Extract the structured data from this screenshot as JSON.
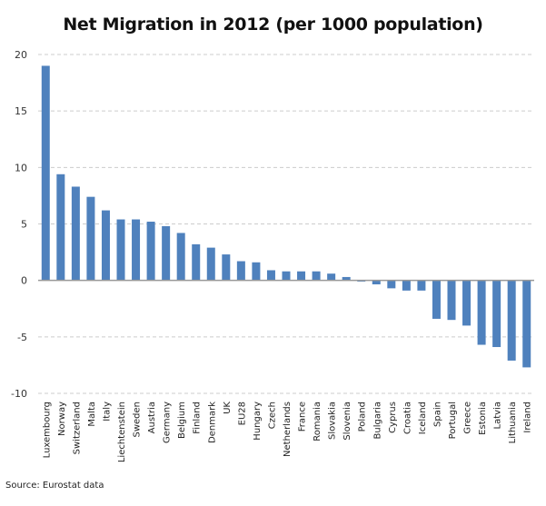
{
  "chart_data": {
    "type": "bar",
    "title": "Net Migration in 2012 (per 1000 population)",
    "xlabel": "",
    "ylabel": "",
    "ylim": [
      -10,
      20
    ],
    "yticks": [
      -10,
      -5,
      0,
      5,
      10,
      15,
      20
    ],
    "grid": "horizontal dashed",
    "bar_color": "#4F81BD",
    "categories": [
      "Luxembourg",
      "Norway",
      "Switzerland",
      "Malta",
      "Italy",
      "Liechtenstein",
      "Sweden",
      "Austria",
      "Germany",
      "Belgium",
      "Finland",
      "Denmark",
      "UK",
      "EU28",
      "Hungary",
      "Czech",
      "Netherlands",
      "France",
      "Romania",
      "Slovakia",
      "Slovenia",
      "Poland",
      "Bulgaria",
      "Cyprus",
      "Croatia",
      "Iceland",
      "Spain",
      "Portugal",
      "Greece",
      "Estonia",
      "Latvia",
      "Lithuania",
      "Ireland"
    ],
    "values": [
      19.0,
      9.4,
      8.3,
      7.4,
      6.2,
      5.4,
      5.4,
      5.2,
      4.8,
      4.2,
      3.2,
      2.9,
      2.3,
      1.7,
      1.6,
      0.9,
      0.8,
      0.8,
      0.8,
      0.6,
      0.3,
      -0.1,
      -0.35,
      -0.7,
      -0.9,
      -0.9,
      -3.4,
      -3.5,
      -4.0,
      -5.7,
      -5.9,
      -7.1,
      -7.7
    ],
    "source": "Source: Eurostat data"
  }
}
